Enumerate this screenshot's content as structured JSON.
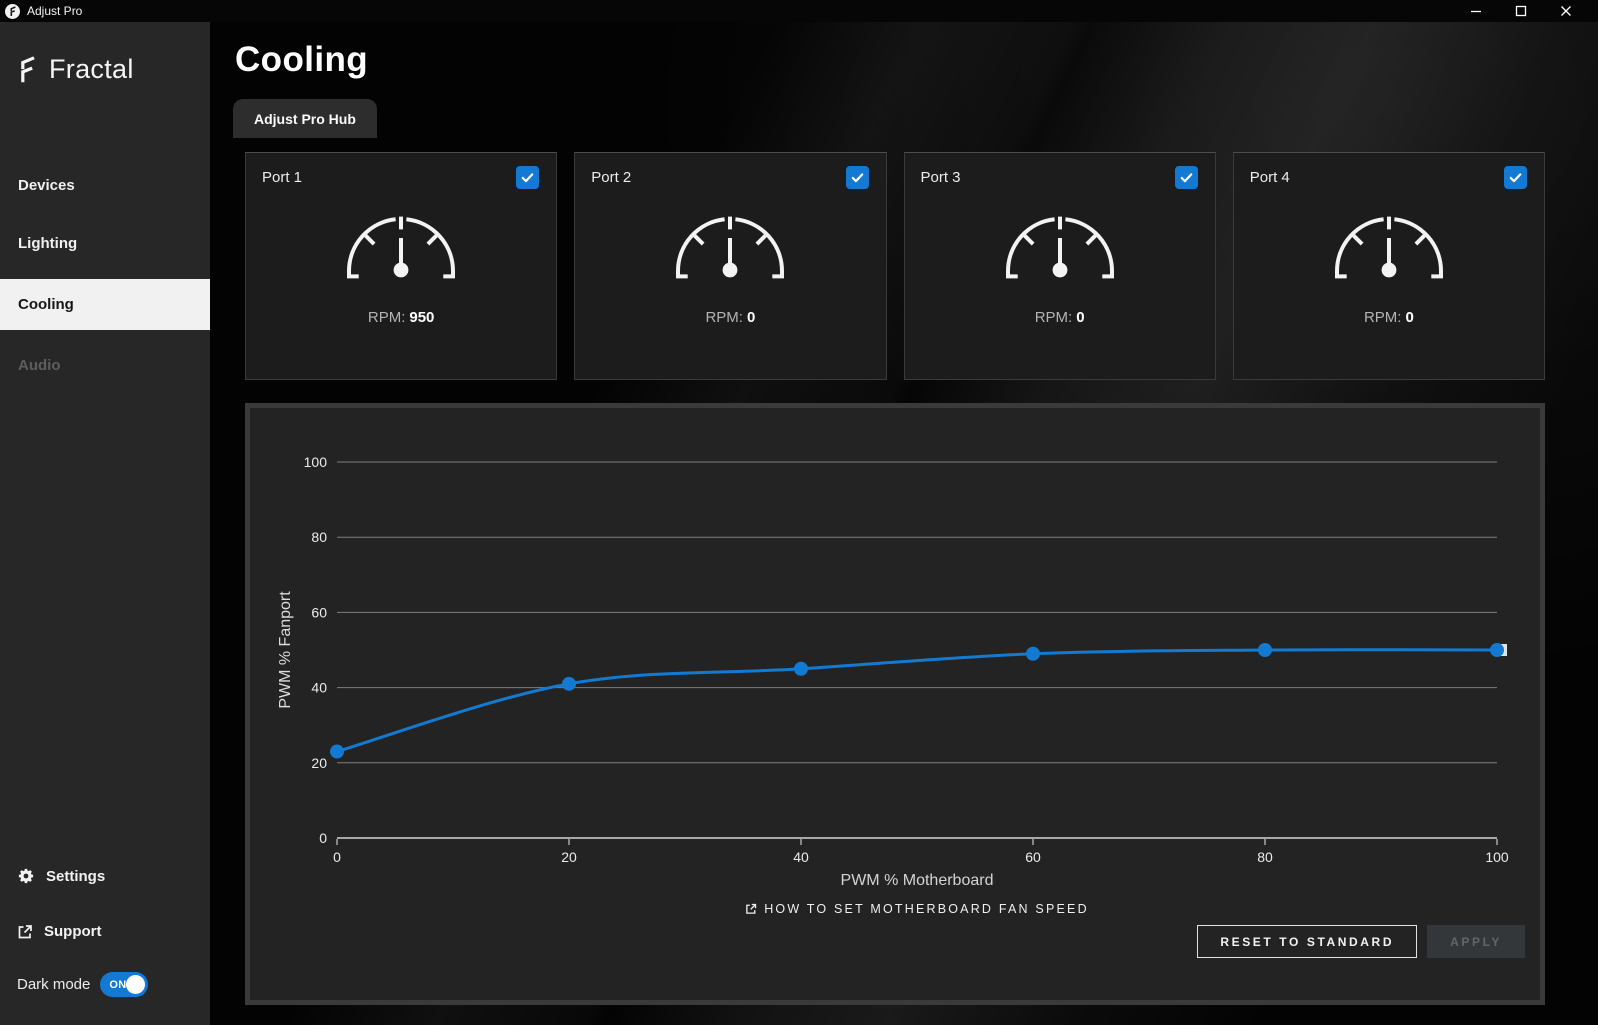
{
  "window": {
    "title": "Adjust Pro",
    "controls": {
      "minimize": "minimize-icon",
      "maximize": "maximize-icon",
      "close": "close-icon"
    }
  },
  "sidebar": {
    "brand": "Fractal",
    "items": [
      {
        "label": "Devices",
        "state": "normal"
      },
      {
        "label": "Lighting",
        "state": "normal"
      },
      {
        "label": "Cooling",
        "state": "active"
      },
      {
        "label": "Audio",
        "state": "disabled"
      }
    ],
    "settings_label": "Settings",
    "support_label": "Support",
    "dark_mode_label": "Dark mode",
    "dark_mode_state": "ON"
  },
  "page": {
    "title": "Cooling",
    "tab": "Adjust Pro Hub"
  },
  "cards": {
    "rpm_prefix": "RPM:"
  },
  "ports": [
    {
      "label": "Port 1",
      "rpm": "950",
      "checked": true
    },
    {
      "label": "Port 2",
      "rpm": "0",
      "checked": true
    },
    {
      "label": "Port 3",
      "rpm": "0",
      "checked": true
    },
    {
      "label": "Port 4",
      "rpm": "0",
      "checked": true
    }
  ],
  "chart_data": {
    "type": "line",
    "title": "",
    "xlabel": "PWM % Motherboard",
    "ylabel": "PWM % Fanport",
    "xlim": [
      0,
      100
    ],
    "ylim": [
      0,
      100
    ],
    "x_ticks": [
      0,
      20,
      40,
      60,
      80,
      100
    ],
    "y_ticks": [
      0,
      20,
      40,
      60,
      80,
      100
    ],
    "grid": true,
    "legend": "none",
    "series": [
      {
        "name": "fan-curve",
        "points": [
          [
            0,
            23
          ],
          [
            20,
            41
          ],
          [
            40,
            45
          ],
          [
            60,
            49
          ],
          [
            80,
            50
          ],
          [
            100,
            50
          ]
        ]
      }
    ],
    "line_color": "#137ad1",
    "grid_color": "#7e7e7e",
    "axis_color": "#a8a8a8",
    "tick_label_color": "#ebebeb"
  },
  "footer": {
    "help_link": "HOW TO SET MOTHERBOARD FAN SPEED",
    "reset_label": "RESET TO STANDARD",
    "apply_label": "APPLY"
  },
  "colors": {
    "accent_blue": "#1379d2",
    "sidebar_bg": "#272727",
    "card_bg": "#1c1c1c",
    "panel_bg": "#232323",
    "active_item_bg": "#f1f1f1"
  },
  "icons": {
    "brand": "fractal-logo-icon",
    "settings": "gear-icon",
    "support": "external-link-icon",
    "help": "external-link-icon",
    "port_checkbox": "checkmark-icon",
    "gauge": "speedometer-gauge-icon"
  }
}
